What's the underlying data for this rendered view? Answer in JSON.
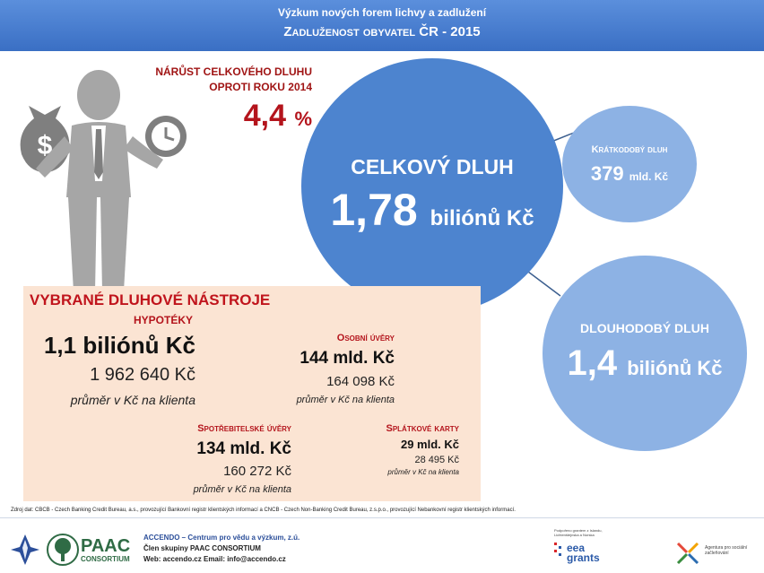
{
  "header": {
    "line1": "Výzkum nových forem lichvy a zadlužení",
    "line2": "Zadluženost obyvatel ČR - 2015"
  },
  "growth": {
    "title_line1": "NÁRŮST CELKOVÉHO DLUHU",
    "title_line2": "OPROTI ROKU 2014",
    "value": "4,4",
    "unit": "%"
  },
  "total_debt": {
    "label": "CELKOVÝ DLUH",
    "value": "1,78",
    "unit": "biliónů Kč"
  },
  "short_term": {
    "label": "Krátkodobý dluh",
    "value": "379",
    "unit": "mld. Kč"
  },
  "long_term": {
    "label": "DLOUHODOBÝ DLUH",
    "value": "1,4",
    "unit": "biliónů Kč"
  },
  "instruments": {
    "title": "VYBRANÉ DLUHOVÉ NÁSTROJE",
    "mortgages": {
      "label": "HYPOTÉKY",
      "total": "1,1 biliónů Kč",
      "per_client": "1 962 640 Kč",
      "note": "průměr v Kč na klienta"
    },
    "personal_loans": {
      "label": "Osobní úvěry",
      "total": "144 mld. Kč",
      "per_client": "164 098 Kč",
      "note": "průměr v Kč na klienta"
    },
    "consumer_loans": {
      "label": "Spotřebitelské úvěry",
      "total": "134 mld. Kč",
      "per_client": "160 272 Kč",
      "note": "průměr v Kč na klienta"
    },
    "credit_cards": {
      "label": "Splátkové karty",
      "total": "29 mld. Kč",
      "per_client": "28 495 Kč",
      "note": "průměr v Kč na klienta"
    }
  },
  "source": "Zdroj dat: CBCB - Czech Banking Credit Bureau, a.s., provozující Bankovní registr klientských informací a CNCB - Czech Non-Banking Credit Bureau, z.s.p.o., provozující Nebankovní registr klientských informací.",
  "footer": {
    "paac": "PAAC",
    "paac_sub": "CONSORTIUM",
    "accendo_line1": "ACCENDO – Centrum pro vědu a výzkum, z.ú.",
    "accendo_line2": "Člen skupiny PAAC CONSORTIUM",
    "accendo_line3": "Web: accendo.cz       Email: info@accendo.cz",
    "eea_note": "Podpořeno grantem z Islandu, Lichtenštejnska a Norska",
    "eea_logo_text": "eea grants",
    "agency_text": "Agentura pro sociální začleňování"
  },
  "colors": {
    "header": "#3a6fc4",
    "main_circle": "#4d84cf",
    "side_circles": "#8db2e4",
    "accent_red": "#b4141c",
    "panel_bg": "#fbe4d3"
  }
}
